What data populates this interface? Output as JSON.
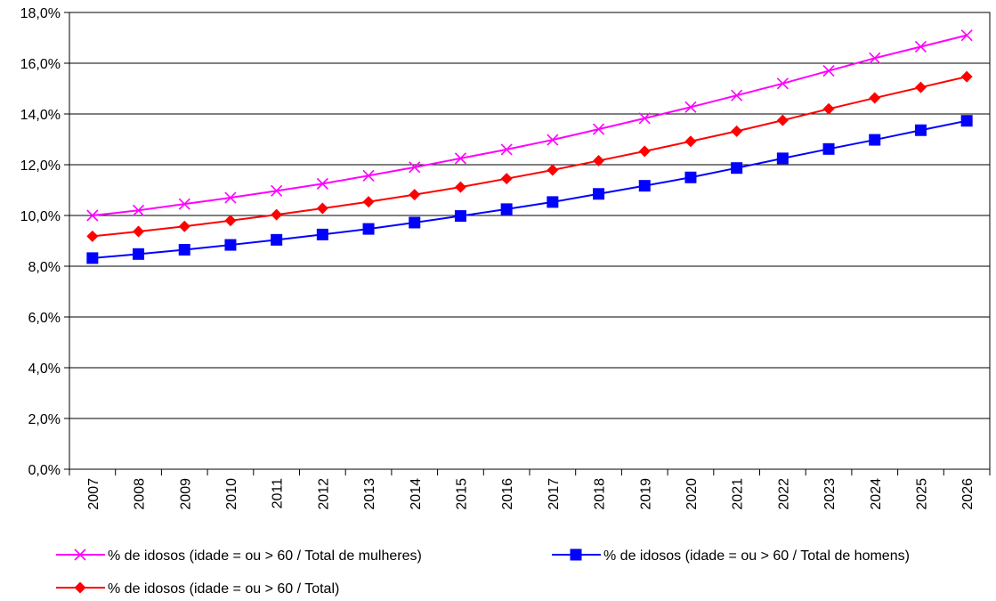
{
  "chart_data": {
    "type": "line",
    "title": "",
    "xlabel": "",
    "ylabel": "",
    "x": [
      "2007",
      "2008",
      "2009",
      "2010",
      "2011",
      "2012",
      "2013",
      "2014",
      "2015",
      "2016",
      "2017",
      "2018",
      "2019",
      "2020",
      "2021",
      "2022",
      "2023",
      "2024",
      "2025",
      "2026"
    ],
    "ylim": [
      0,
      18
    ],
    "yticks": [
      "0,0%",
      "2,0%",
      "4,0%",
      "6,0%",
      "8,0%",
      "10,0%",
      "12,0%",
      "14,0%",
      "16,0%",
      "18,0%"
    ],
    "grid": true,
    "legend_position": "bottom",
    "series": [
      {
        "name": "% de idosos (idade = ou > 60 / Total de mulheres)",
        "color": "#ff00ff",
        "marker": "x",
        "values": [
          10.0,
          10.2,
          10.45,
          10.7,
          10.97,
          11.25,
          11.57,
          11.9,
          12.25,
          12.6,
          12.98,
          13.4,
          13.83,
          14.27,
          14.73,
          15.2,
          15.7,
          16.2,
          16.65,
          17.1
        ]
      },
      {
        "name": "% de idosos (idade = ou > 60 / Total de homens)",
        "color": "#0000ff",
        "marker": "square",
        "values": [
          8.32,
          8.48,
          8.65,
          8.84,
          9.04,
          9.25,
          9.47,
          9.72,
          9.98,
          10.25,
          10.53,
          10.85,
          11.17,
          11.5,
          11.87,
          12.25,
          12.62,
          12.98,
          13.36,
          13.73
        ]
      },
      {
        "name": "% de idosos (idade = ou > 60 / Total)",
        "color": "#ff0000",
        "marker": "diamond",
        "values": [
          9.18,
          9.37,
          9.57,
          9.8,
          10.03,
          10.28,
          10.54,
          10.82,
          11.12,
          11.45,
          11.79,
          12.16,
          12.53,
          12.92,
          13.32,
          13.75,
          14.2,
          14.63,
          15.05,
          15.47
        ]
      }
    ]
  }
}
